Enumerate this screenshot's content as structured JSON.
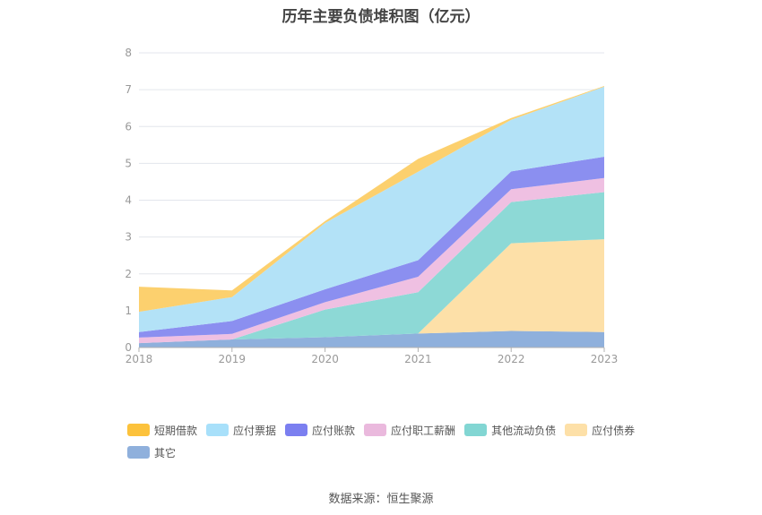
{
  "chart_data": {
    "type": "area",
    "stacked": true,
    "title": "历年主要负债堆积图（亿元）",
    "x": [
      "2018",
      "2019",
      "2020",
      "2021",
      "2022",
      "2023"
    ],
    "ylim": [
      0,
      8
    ],
    "yticks": [
      "0",
      "1",
      "2",
      "3",
      "4",
      "5",
      "6",
      "7",
      "8"
    ],
    "grid": true,
    "legend_position": "bottom-left",
    "series": [
      {
        "name": "其它",
        "color": "#8fb0dc",
        "values": [
          0.12,
          0.22,
          0.28,
          0.38,
          0.45,
          0.42
        ]
      },
      {
        "name": "应付债券",
        "color": "#fde0a8",
        "values": [
          0,
          0,
          0,
          0,
          2.38,
          2.52
        ]
      },
      {
        "name": "其他流动负债",
        "color": "#8dd9d6",
        "values": [
          0,
          0,
          0.75,
          1.12,
          1.12,
          1.28
        ]
      },
      {
        "name": "应付职工薪酬",
        "color": "#efc0e2",
        "values": [
          0.15,
          0.15,
          0.2,
          0.42,
          0.35,
          0.38
        ]
      },
      {
        "name": "应付账款",
        "color": "#8b8ff0",
        "values": [
          0.15,
          0.35,
          0.35,
          0.45,
          0.48,
          0.58
        ]
      },
      {
        "name": "应付票据",
        "color": "#b3e2f7",
        "values": [
          0.55,
          0.65,
          1.8,
          2.4,
          1.4,
          1.9
        ]
      },
      {
        "name": "短期借款",
        "color": "#fcd06e",
        "values": [
          0.68,
          0.18,
          0.05,
          0.35,
          0.05,
          0.02
        ]
      }
    ],
    "legend_order": [
      "短期借款",
      "应付票据",
      "应付账款",
      "应付职工薪酬",
      "其他流动负债",
      "应付债券",
      "其它"
    ],
    "legend_colors": {
      "短期借款": "#fcc23c",
      "应付票据": "#a8e0fa",
      "应付账款": "#7b7ff0",
      "应付职工薪酬": "#eab9dd",
      "其他流动负债": "#82d6d3",
      "应付债券": "#fde0a8",
      "其它": "#8fb0dc"
    }
  },
  "source": "数据来源：恒生聚源"
}
